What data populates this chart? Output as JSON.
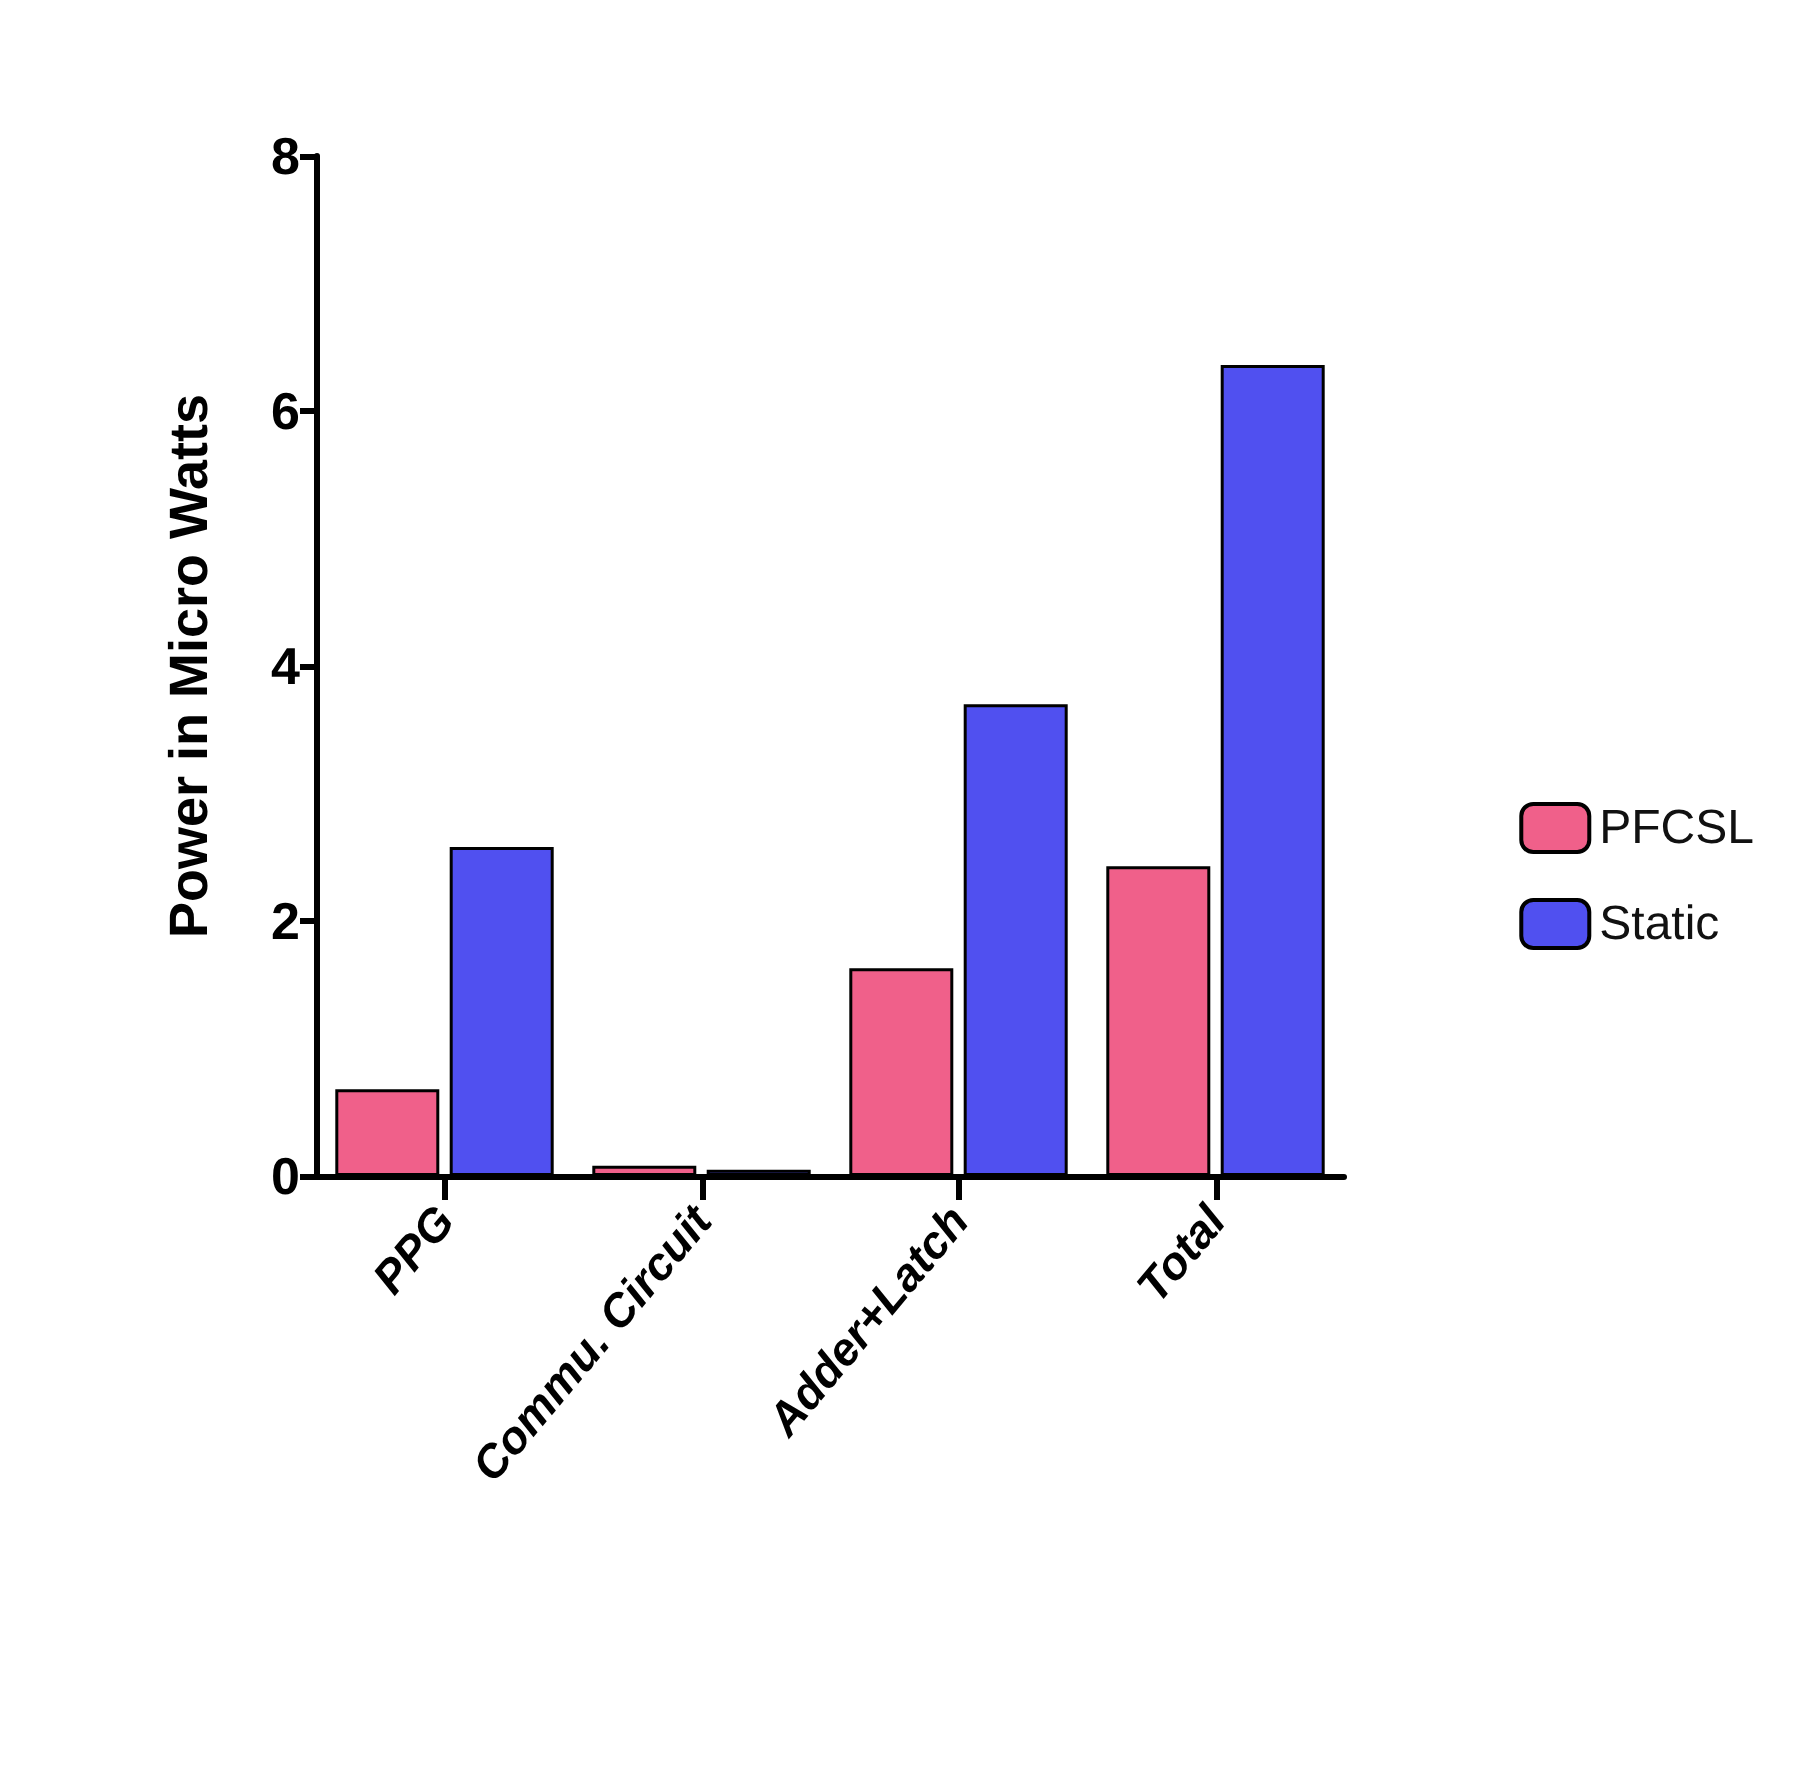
{
  "chart_data": {
    "type": "bar",
    "ylabel": "Power in Micro Watts",
    "categories": [
      "PPG",
      "Commu. Circuit",
      "Adder+Latch",
      "Total"
    ],
    "series": [
      {
        "name": "PFCSL",
        "color": "#f0608a",
        "values": [
          0.68,
          0.08,
          1.63,
          2.43
        ]
      },
      {
        "name": "Static",
        "color": "#5050f0",
        "values": [
          2.58,
          0.05,
          3.7,
          6.36
        ]
      }
    ],
    "ylim": [
      0,
      8
    ],
    "yticks": [
      0,
      2,
      4,
      6,
      8
    ],
    "grid": false,
    "legend": "right"
  }
}
